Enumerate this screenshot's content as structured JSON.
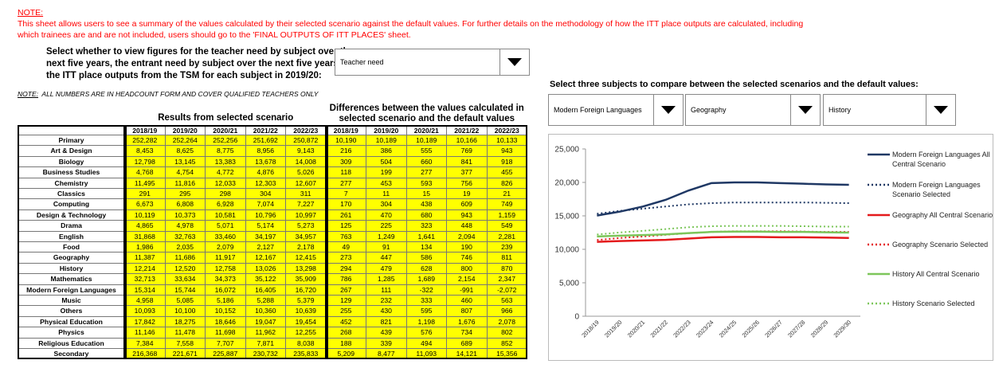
{
  "note": {
    "title": "NOTE:",
    "lines": [
      "This sheet allows users to see a summary of the values calculated by their selected scenario against the default values. For further details on the methodology of how the ITT place outputs are calculated, including",
      "which trainees are and are not included, users should go to the 'FINAL OUTPUTS OF ITT PLACES' sheet."
    ]
  },
  "instruction": [
    "Select whether to view figures for the teacher need by subject over the",
    "next five years, the entrant need by subject over the next five years, or",
    "the ITT place outputs from the TSM for each subject in 2019/20:"
  ],
  "dropdown": "Teacher need",
  "headcount_note": {
    "label": "NOTE:",
    "text": "ALL NUMBERS ARE IN HEADCOUNT FORM AND COVER QUALIFIED TEACHERS ONLY"
  },
  "table": {
    "results_header": "Results from selected scenario",
    "differences_header": [
      "Differences between the values calculated in",
      "selected scenario and the default values"
    ],
    "years": [
      "2018/19",
      "2019/20",
      "2020/21",
      "2021/22",
      "2022/23"
    ],
    "rows": [
      {
        "label": "Primary",
        "results": [
          "252,282",
          "252,264",
          "252,256",
          "251,692",
          "250,872"
        ],
        "differences": [
          "10,190",
          "10,189",
          "10,189",
          "10,166",
          "10,133"
        ]
      },
      {
        "label": "Art & Design",
        "results": [
          "8,453",
          "8,625",
          "8,775",
          "8,956",
          "9,143"
        ],
        "differences": [
          "216",
          "386",
          "555",
          "769",
          "943"
        ]
      },
      {
        "label": "Biology",
        "results": [
          "12,798",
          "13,145",
          "13,383",
          "13,678",
          "14,008"
        ],
        "differences": [
          "309",
          "504",
          "660",
          "841",
          "918"
        ]
      },
      {
        "label": "Business Studies",
        "results": [
          "4,768",
          "4,754",
          "4,772",
          "4,876",
          "5,026"
        ],
        "differences": [
          "118",
          "199",
          "277",
          "377",
          "455"
        ]
      },
      {
        "label": "Chemistry",
        "results": [
          "11,495",
          "11,816",
          "12,033",
          "12,303",
          "12,607"
        ],
        "differences": [
          "277",
          "453",
          "593",
          "756",
          "826"
        ]
      },
      {
        "label": "Classics",
        "results": [
          "291",
          "295",
          "298",
          "304",
          "311"
        ],
        "differences": [
          "7",
          "11",
          "15",
          "19",
          "21"
        ]
      },
      {
        "label": "Computing",
        "results": [
          "6,673",
          "6,808",
          "6,928",
          "7,074",
          "7,227"
        ],
        "differences": [
          "170",
          "304",
          "438",
          "609",
          "749"
        ]
      },
      {
        "label": "Design & Technology",
        "results": [
          "10,119",
          "10,373",
          "10,581",
          "10,796",
          "10,997"
        ],
        "differences": [
          "261",
          "470",
          "680",
          "943",
          "1,159"
        ]
      },
      {
        "label": "Drama",
        "results": [
          "4,865",
          "4,978",
          "5,071",
          "5,174",
          "5,273"
        ],
        "differences": [
          "125",
          "225",
          "323",
          "448",
          "549"
        ]
      },
      {
        "label": "English",
        "results": [
          "31,868",
          "32,763",
          "33,460",
          "34,197",
          "34,957"
        ],
        "differences": [
          "763",
          "1,249",
          "1,641",
          "2,094",
          "2,281"
        ]
      },
      {
        "label": "Food",
        "results": [
          "1,986",
          "2,035",
          "2,079",
          "2,127",
          "2,178"
        ],
        "differences": [
          "49",
          "91",
          "134",
          "190",
          "239"
        ]
      },
      {
        "label": "Geography",
        "results": [
          "11,387",
          "11,686",
          "11,917",
          "12,167",
          "12,415"
        ],
        "differences": [
          "273",
          "447",
          "586",
          "746",
          "811"
        ]
      },
      {
        "label": "History",
        "results": [
          "12,214",
          "12,520",
          "12,758",
          "13,026",
          "13,298"
        ],
        "differences": [
          "294",
          "479",
          "628",
          "800",
          "870"
        ]
      },
      {
        "label": "Mathematics",
        "results": [
          "32,713",
          "33,634",
          "34,373",
          "35,122",
          "35,909"
        ],
        "differences": [
          "786",
          "1,285",
          "1,689",
          "2,154",
          "2,347"
        ]
      },
      {
        "label": "Modern Foreign Languages",
        "results": [
          "15,314",
          "15,744",
          "16,072",
          "16,405",
          "16,720"
        ],
        "differences": [
          "267",
          "111",
          "-322",
          "-991",
          "-2,072"
        ]
      },
      {
        "label": "Music",
        "results": [
          "4,958",
          "5,085",
          "5,186",
          "5,288",
          "5,379"
        ],
        "differences": [
          "129",
          "232",
          "333",
          "460",
          "563"
        ]
      },
      {
        "label": "Others",
        "results": [
          "10,093",
          "10,100",
          "10,152",
          "10,360",
          "10,639"
        ],
        "differences": [
          "255",
          "430",
          "595",
          "807",
          "966"
        ]
      },
      {
        "label": "Physical Education",
        "results": [
          "17,842",
          "18,275",
          "18,646",
          "19,047",
          "19,454"
        ],
        "differences": [
          "452",
          "821",
          "1,198",
          "1,676",
          "2,078"
        ]
      },
      {
        "label": "Physics",
        "results": [
          "11,146",
          "11,478",
          "11,698",
          "11,962",
          "12,255"
        ],
        "differences": [
          "268",
          "439",
          "576",
          "734",
          "802"
        ]
      },
      {
        "label": "Religious Education",
        "results": [
          "7,384",
          "7,558",
          "7,707",
          "7,871",
          "8,038"
        ],
        "differences": [
          "188",
          "339",
          "494",
          "689",
          "852"
        ]
      },
      {
        "label": "Secondary",
        "results": [
          "216,368",
          "221,671",
          "225,887",
          "230,732",
          "235,833"
        ],
        "differences": [
          "5,209",
          "8,477",
          "11,093",
          "14,121",
          "15,356"
        ]
      }
    ]
  },
  "compare": {
    "title": "Select three subjects to compare between the selected scenarios and the default values:",
    "dropdowns": [
      "Modern Foreign Languages",
      "Geography",
      "History"
    ]
  },
  "chart_data": {
    "type": "line",
    "categories": [
      "2018/19",
      "2019/20",
      "2020/21",
      "2021/22",
      "2022/23",
      "2023/24",
      "2024/25",
      "2025/26",
      "2026/27",
      "2027/28",
      "2028/29",
      "2029/30"
    ],
    "ylim": [
      0,
      25000
    ],
    "yticks": [
      0,
      {
        "value": 5000,
        "label": "5,000"
      },
      {
        "value": 10000,
        "label": "10,000"
      },
      {
        "value": 15000,
        "label": "15,000"
      },
      {
        "value": 20000,
        "label": "20,000"
      },
      {
        "value": 25000,
        "label": "25,000"
      }
    ],
    "series": [
      {
        "name": "Modern Foreign Languages All Central Scenario",
        "color": "#1f3864",
        "style": "solid",
        "values": [
          15047,
          15633,
          16394,
          17396,
          18792,
          19900,
          20000,
          20000,
          19900,
          19800,
          19700,
          19650
        ]
      },
      {
        "name": "Modern Foreign Languages Scenario Selected",
        "color": "#1f3864",
        "style": "dotted",
        "values": [
          15314,
          15744,
          16072,
          16405,
          16720,
          16900,
          17000,
          17000,
          17000,
          17000,
          16950,
          16900
        ]
      },
      {
        "name": "Geography All Central Scenario",
        "color": "#e41a1c",
        "style": "solid",
        "values": [
          11114,
          11239,
          11331,
          11421,
          11604,
          11800,
          11850,
          11850,
          11800,
          11800,
          11750,
          11700
        ]
      },
      {
        "name": "Geography Scenario Selected",
        "color": "#e41a1c",
        "style": "dotted",
        "values": [
          11387,
          11686,
          11917,
          12167,
          12415,
          12600,
          12700,
          12700,
          12700,
          12650,
          12600,
          12600
        ]
      },
      {
        "name": "History All Central Scenario",
        "color": "#7cc65a",
        "style": "solid",
        "values": [
          11920,
          12041,
          12130,
          12226,
          12428,
          12600,
          12650,
          12650,
          12600,
          12600,
          12550,
          12500
        ]
      },
      {
        "name": "History Scenario Selected",
        "color": "#7cc65a",
        "style": "dotted",
        "values": [
          12214,
          12520,
          12758,
          13026,
          13298,
          13450,
          13500,
          13500,
          13500,
          13450,
          13400,
          13400
        ]
      }
    ],
    "grid": false,
    "legend": "right"
  }
}
